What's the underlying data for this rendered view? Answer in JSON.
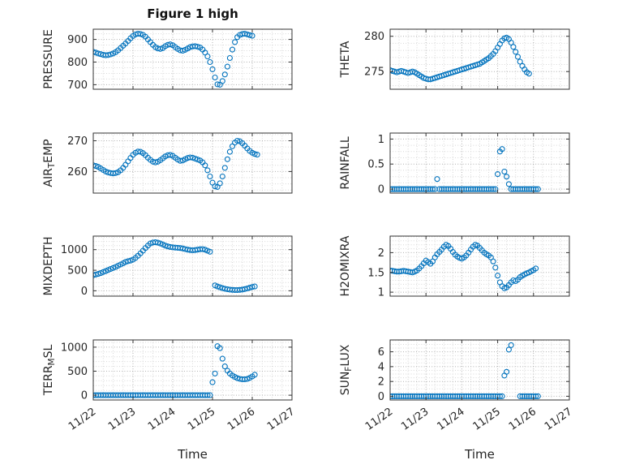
{
  "title": "Figure 1 high",
  "colors": {
    "marker": "#0072BD",
    "text": "#262626",
    "grid_major": "#b0b0b0",
    "grid_minor": "#d8d8d8",
    "box": "#333333",
    "background": "#ffffff"
  },
  "x_axis": {
    "xlabel": "Time",
    "xlim": [
      0,
      5
    ],
    "xticks": [
      0,
      1,
      2,
      3,
      4,
      5
    ],
    "xtick_labels": [
      "11/22",
      "11/23",
      "11/24",
      "11/25",
      "11/26",
      "11/27"
    ],
    "xtick_angle": -35,
    "xminor_step": 0.25,
    "note": "x values are days since 11/22, shared by all charts",
    "x": [
      0,
      0.0625,
      0.125,
      0.1875,
      0.25,
      0.3125,
      0.375,
      0.4375,
      0.5,
      0.5625,
      0.625,
      0.6875,
      0.75,
      0.8125,
      0.875,
      0.9375,
      1,
      1.0625,
      1.125,
      1.1875,
      1.25,
      1.3125,
      1.375,
      1.4375,
      1.5,
      1.5625,
      1.625,
      1.6875,
      1.75,
      1.8125,
      1.875,
      1.9375,
      2,
      2.0625,
      2.125,
      2.1875,
      2.25,
      2.3125,
      2.375,
      2.4375,
      2.5,
      2.5625,
      2.625,
      2.6875,
      2.75,
      2.8125,
      2.875,
      2.9375,
      3,
      3.0625,
      3.125,
      3.1875,
      3.25,
      3.3125,
      3.375,
      3.4375,
      3.5,
      3.5625,
      3.625,
      3.6875,
      3.75,
      3.8125,
      3.875,
      3.9375,
      4,
      4.0625,
      4.125
    ]
  },
  "chart_data": [
    {
      "id": "pressure",
      "type": "scatter",
      "marker": "open-circle",
      "ylabel": "PRESSURE",
      "yticks": [
        700,
        800,
        900
      ],
      "ylim": [
        680,
        945
      ],
      "yminor_step": 25,
      "grid": "major+minor dotted",
      "y": [
        845,
        842,
        838,
        835,
        832,
        830,
        831,
        834,
        838,
        844,
        852,
        862,
        872,
        882,
        893,
        905,
        915,
        922,
        925,
        924,
        920,
        912,
        900,
        888,
        876,
        866,
        860,
        858,
        862,
        870,
        876,
        878,
        874,
        866,
        858,
        852,
        850,
        854,
        860,
        866,
        869,
        870,
        868,
        864,
        855,
        842,
        825,
        800,
        768,
        732,
        702,
        700,
        716,
        745,
        780,
        818,
        855,
        888,
        910,
        920,
        924,
        925,
        922,
        919,
        916,
        null,
        null
      ]
    },
    {
      "id": "theta",
      "type": "scatter",
      "marker": "open-circle",
      "ylabel": "THETA",
      "yticks": [
        275,
        280
      ],
      "ylim": [
        272.5,
        281
      ],
      "yminor_step": 1,
      "grid": "major+minor dotted",
      "y": [
        275.2,
        275.1,
        275.0,
        274.9,
        275.0,
        275.1,
        275.0,
        274.9,
        274.8,
        274.9,
        275.0,
        274.9,
        274.7,
        274.5,
        274.3,
        274.1,
        274.0,
        273.9,
        273.9,
        274.0,
        274.1,
        274.2,
        274.3,
        274.4,
        274.5,
        274.6,
        274.7,
        274.8,
        274.9,
        275.0,
        275.1,
        275.2,
        275.3,
        275.4,
        275.5,
        275.6,
        275.7,
        275.8,
        275.9,
        276.0,
        276.1,
        276.3,
        276.5,
        276.7,
        276.9,
        277.2,
        277.5,
        277.9,
        278.4,
        278.9,
        279.4,
        279.7,
        279.8,
        279.6,
        279.1,
        278.5,
        277.8,
        277.1,
        276.4,
        275.8,
        275.3,
        274.9,
        274.7,
        null,
        null,
        null,
        null
      ]
    },
    {
      "id": "air-temp",
      "type": "scatter",
      "marker": "open-circle",
      "ylabel": "AIR_TEMP",
      "yticks": [
        260,
        270
      ],
      "ylim": [
        253,
        272.5
      ],
      "yminor_step": 2,
      "grid": "major+minor dotted",
      "y": [
        262.0,
        261.8,
        261.5,
        261.0,
        260.5,
        260.0,
        259.7,
        259.5,
        259.4,
        259.5,
        259.8,
        260.4,
        261.2,
        262.2,
        263.3,
        264.4,
        265.4,
        266.1,
        266.5,
        266.4,
        266.0,
        265.3,
        264.5,
        263.8,
        263.2,
        263.0,
        263.2,
        263.7,
        264.3,
        264.9,
        265.3,
        265.4,
        265.1,
        264.5,
        263.9,
        263.5,
        263.6,
        264.0,
        264.4,
        264.6,
        264.5,
        264.2,
        263.9,
        263.6,
        263.0,
        262.0,
        260.4,
        258.4,
        256.4,
        255.2,
        255.0,
        256.2,
        258.4,
        261.2,
        264.0,
        266.4,
        268.2,
        269.4,
        270.0,
        269.8,
        269.2,
        268.4,
        267.5,
        266.7,
        266.1,
        265.7,
        265.5
      ]
    },
    {
      "id": "rainfall",
      "type": "scatter",
      "marker": "open-circle",
      "ylabel": "RAINFALL",
      "yticks": [
        0,
        0.5,
        1
      ],
      "ylim": [
        -0.08,
        1.12
      ],
      "yminor_step": 0.125,
      "grid": "major+minor dotted",
      "y": [
        0,
        0,
        0,
        0,
        0,
        0,
        0,
        0,
        0,
        0,
        0,
        0,
        0,
        0,
        0,
        0,
        0,
        0,
        0,
        0,
        0,
        0.2,
        0,
        0,
        0,
        0,
        0,
        0,
        0,
        0,
        0,
        0,
        0,
        0,
        0,
        0,
        0,
        0,
        0,
        0,
        0,
        0,
        0,
        0,
        0,
        0,
        0,
        0,
        0.3,
        0.75,
        0.8,
        0.35,
        0.25,
        0.1,
        0,
        0,
        0,
        0,
        0,
        0,
        0,
        0,
        0,
        0,
        0,
        0,
        0
      ]
    },
    {
      "id": "mixdepth",
      "type": "scatter",
      "marker": "open-circle",
      "ylabel": "MIXDEPTH",
      "yticks": [
        0,
        500,
        1000
      ],
      "ylim": [
        -130,
        1330
      ],
      "yminor_step": 100,
      "grid": "major+minor dotted",
      "y": [
        380,
        395,
        410,
        430,
        455,
        480,
        505,
        530,
        555,
        580,
        610,
        640,
        670,
        700,
        720,
        735,
        760,
        800,
        850,
        910,
        975,
        1040,
        1100,
        1150,
        1175,
        1180,
        1170,
        1150,
        1125,
        1100,
        1080,
        1065,
        1055,
        1050,
        1045,
        1040,
        1030,
        1015,
        1000,
        990,
        985,
        990,
        1000,
        1010,
        1015,
        1000,
        975,
        950,
        null,
        130,
        105,
        85,
        65,
        50,
        38,
        28,
        22,
        18,
        18,
        22,
        30,
        42,
        58,
        75,
        92,
        105,
        null
      ]
    },
    {
      "id": "h2omixra",
      "type": "scatter",
      "marker": "open-circle",
      "ylabel": "H2OMIXRA",
      "yticks": [
        1,
        1.5,
        2
      ],
      "ylim": [
        0.9,
        2.42
      ],
      "yminor_step": 0.1,
      "grid": "major+minor dotted",
      "y": [
        1.55,
        1.54,
        1.53,
        1.52,
        1.52,
        1.53,
        1.54,
        1.53,
        1.52,
        1.51,
        1.5,
        1.52,
        1.55,
        1.6,
        1.66,
        1.73,
        1.8,
        1.76,
        1.72,
        1.78,
        1.88,
        1.96,
        2.02,
        2.08,
        2.15,
        2.2,
        2.17,
        2.1,
        2.02,
        1.95,
        1.9,
        1.87,
        1.85,
        1.88,
        1.93,
        2.0,
        2.08,
        2.15,
        2.2,
        2.18,
        2.12,
        2.06,
        2.0,
        1.96,
        1.93,
        1.88,
        1.78,
        1.62,
        1.42,
        1.25,
        1.15,
        1.1,
        1.12,
        1.18,
        1.25,
        1.3,
        1.28,
        1.32,
        1.38,
        1.42,
        1.45,
        1.48,
        1.5,
        1.53,
        1.56,
        1.6,
        null
      ]
    },
    {
      "id": "terr-msl",
      "type": "scatter",
      "marker": "open-circle",
      "ylabel": "TERR_MSL",
      "yticks": [
        0,
        500,
        1000
      ],
      "ylim": [
        -100,
        1150
      ],
      "yminor_step": 100,
      "grid": "major+minor dotted",
      "y": [
        0,
        0,
        0,
        0,
        0,
        0,
        0,
        0,
        0,
        0,
        0,
        0,
        0,
        0,
        0,
        0,
        0,
        0,
        0,
        0,
        0,
        0,
        0,
        0,
        0,
        0,
        0,
        0,
        0,
        0,
        0,
        0,
        0,
        0,
        0,
        0,
        0,
        0,
        0,
        0,
        0,
        0,
        0,
        0,
        0,
        0,
        0,
        0,
        270,
        450,
        1020,
        980,
        760,
        600,
        510,
        450,
        410,
        380,
        355,
        340,
        330,
        330,
        340,
        360,
        390,
        425,
        null
      ]
    },
    {
      "id": "sun-flux",
      "type": "scatter",
      "marker": "open-circle",
      "ylabel": "SUN_FLUX",
      "yticks": [
        0,
        2,
        4,
        6
      ],
      "ylim": [
        -0.5,
        7.6
      ],
      "yminor_step": 0.5,
      "grid": "major+minor dotted",
      "y": [
        0,
        0,
        0,
        0,
        0,
        0,
        0,
        0,
        0,
        0,
        0,
        0,
        0,
        0,
        0,
        0,
        0,
        0,
        0,
        0,
        0,
        0,
        0,
        0,
        0,
        0,
        0,
        0,
        0,
        0,
        0,
        0,
        0,
        0,
        0,
        0,
        0,
        0,
        0,
        0,
        0,
        0,
        0,
        0,
        0,
        0,
        0,
        0,
        0,
        0,
        0,
        2.8,
        3.3,
        6.3,
        6.9,
        null,
        null,
        null,
        0,
        0,
        0,
        0,
        0,
        0,
        0,
        0,
        0
      ]
    }
  ]
}
